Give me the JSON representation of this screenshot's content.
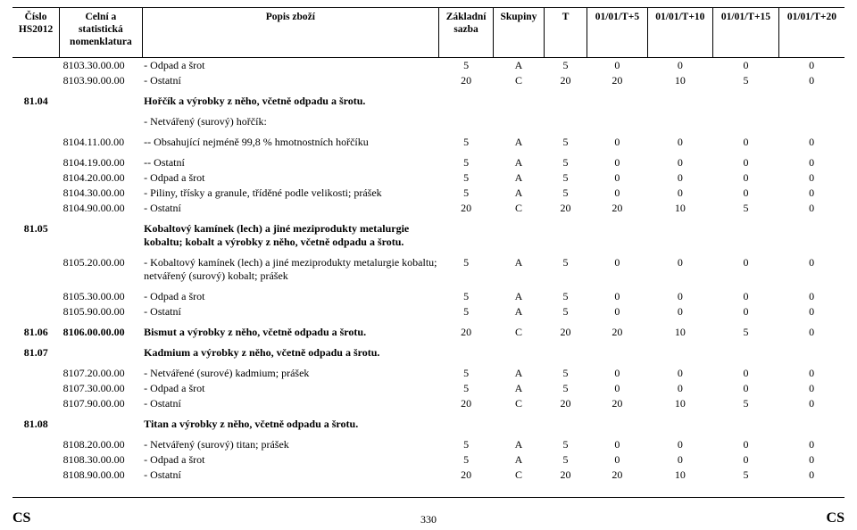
{
  "header": {
    "cols": [
      "Číslo\nHS2012",
      "Celní a\nstatistická\nnomenklatura",
      "Popis zboží",
      "Základní\nsazba",
      "Skupiny",
      "T",
      "01/01/T+5",
      "01/01/T+10",
      "01/01/T+15",
      "01/01/T+20"
    ]
  },
  "rows": [
    {
      "hs": "",
      "code": "8103.30.00.00",
      "desc": "- Odpad a šrot",
      "c": [
        "5",
        "A",
        "5",
        "0",
        "0",
        "0",
        "0"
      ]
    },
    {
      "hs": "",
      "code": "8103.90.00.00",
      "desc": "- Ostatní",
      "c": [
        "20",
        "C",
        "20",
        "20",
        "10",
        "5",
        "0"
      ]
    },
    {
      "spacer": true
    },
    {
      "hs": "81.04",
      "code": "",
      "desc": "Hořčík a výrobky z něho, včetně odpadu a šrotu.",
      "bold": true,
      "c": [
        "",
        "",
        "",
        "",
        "",
        "",
        ""
      ]
    },
    {
      "spacer": true
    },
    {
      "hs": "",
      "code": "",
      "desc": "- Netvářený (surový) hořčík:",
      "c": [
        "",
        "",
        "",
        "",
        "",
        "",
        ""
      ]
    },
    {
      "spacer": true
    },
    {
      "hs": "",
      "code": "8104.11.00.00",
      "desc": "-- Obsahující nejméně 99,8 % hmotnostních hořčíku",
      "c": [
        "5",
        "A",
        "5",
        "0",
        "0",
        "0",
        "0"
      ]
    },
    {
      "spacer": true
    },
    {
      "hs": "",
      "code": "8104.19.00.00",
      "desc": "-- Ostatní",
      "c": [
        "5",
        "A",
        "5",
        "0",
        "0",
        "0",
        "0"
      ]
    },
    {
      "hs": "",
      "code": "8104.20.00.00",
      "desc": "- Odpad a šrot",
      "c": [
        "5",
        "A",
        "5",
        "0",
        "0",
        "0",
        "0"
      ]
    },
    {
      "hs": "",
      "code": "8104.30.00.00",
      "desc": "- Piliny, třísky a granule, tříděné podle velikosti; prášek",
      "c": [
        "5",
        "A",
        "5",
        "0",
        "0",
        "0",
        "0"
      ]
    },
    {
      "hs": "",
      "code": "8104.90.00.00",
      "desc": "- Ostatní",
      "c": [
        "20",
        "C",
        "20",
        "20",
        "10",
        "5",
        "0"
      ]
    },
    {
      "spacer": true
    },
    {
      "hs": "81.05",
      "code": "",
      "desc": "Kobaltový kamínek (lech) a jiné meziprodukty metalurgie kobaltu; kobalt a výrobky z něho, včetně odpadu a šrotu.",
      "bold": true,
      "c": [
        "",
        "",
        "",
        "",
        "",
        "",
        ""
      ]
    },
    {
      "spacer": true
    },
    {
      "hs": "",
      "code": "8105.20.00.00",
      "desc": "- Kobaltový kamínek (lech) a jiné meziprodukty metalurgie kobaltu; netvářený (surový) kobalt; prášek",
      "c": [
        "5",
        "A",
        "5",
        "0",
        "0",
        "0",
        "0"
      ]
    },
    {
      "spacer": true
    },
    {
      "hs": "",
      "code": "8105.30.00.00",
      "desc": "- Odpad a šrot",
      "c": [
        "5",
        "A",
        "5",
        "0",
        "0",
        "0",
        "0"
      ]
    },
    {
      "hs": "",
      "code": "8105.90.00.00",
      "desc": "- Ostatní",
      "c": [
        "5",
        "A",
        "5",
        "0",
        "0",
        "0",
        "0"
      ]
    },
    {
      "spacer": true
    },
    {
      "hs": "81.06",
      "code": "8106.00.00.00",
      "desc": "Bismut a výrobky z něho, včetně odpadu a šrotu.",
      "bold": true,
      "c": [
        "20",
        "C",
        "20",
        "20",
        "10",
        "5",
        "0"
      ]
    },
    {
      "spacer": true
    },
    {
      "hs": "81.07",
      "code": "",
      "desc": "Kadmium a výrobky z něho, včetně odpadu a šrotu.",
      "bold": true,
      "c": [
        "",
        "",
        "",
        "",
        "",
        "",
        ""
      ]
    },
    {
      "spacer": true
    },
    {
      "hs": "",
      "code": "8107.20.00.00",
      "desc": "- Netvářené (surové) kadmium; prášek",
      "c": [
        "5",
        "A",
        "5",
        "0",
        "0",
        "0",
        "0"
      ]
    },
    {
      "hs": "",
      "code": "8107.30.00.00",
      "desc": "- Odpad a šrot",
      "c": [
        "5",
        "A",
        "5",
        "0",
        "0",
        "0",
        "0"
      ]
    },
    {
      "hs": "",
      "code": "8107.90.00.00",
      "desc": "- Ostatní",
      "c": [
        "20",
        "C",
        "20",
        "20",
        "10",
        "5",
        "0"
      ]
    },
    {
      "spacer": true
    },
    {
      "hs": "81.08",
      "code": "",
      "desc": "Titan a výrobky z něho, včetně odpadu a šrotu.",
      "bold": true,
      "c": [
        "",
        "",
        "",
        "",
        "",
        "",
        ""
      ]
    },
    {
      "spacer": true
    },
    {
      "hs": "",
      "code": "8108.20.00.00",
      "desc": "- Netvářený (surový) titan; prášek",
      "c": [
        "5",
        "A",
        "5",
        "0",
        "0",
        "0",
        "0"
      ]
    },
    {
      "hs": "",
      "code": "8108.30.00.00",
      "desc": "- Odpad a šrot",
      "c": [
        "5",
        "A",
        "5",
        "0",
        "0",
        "0",
        "0"
      ]
    },
    {
      "hs": "",
      "code": "8108.90.00.00",
      "desc": "- Ostatní",
      "c": [
        "20",
        "C",
        "20",
        "20",
        "10",
        "5",
        "0"
      ]
    }
  ],
  "colwidths": [
    "50px",
    "88px",
    "316px",
    "58px",
    "54px",
    "46px",
    "64px",
    "70px",
    "70px",
    "70px"
  ],
  "footer": {
    "left": "CS",
    "page": "330",
    "right": "CS"
  }
}
